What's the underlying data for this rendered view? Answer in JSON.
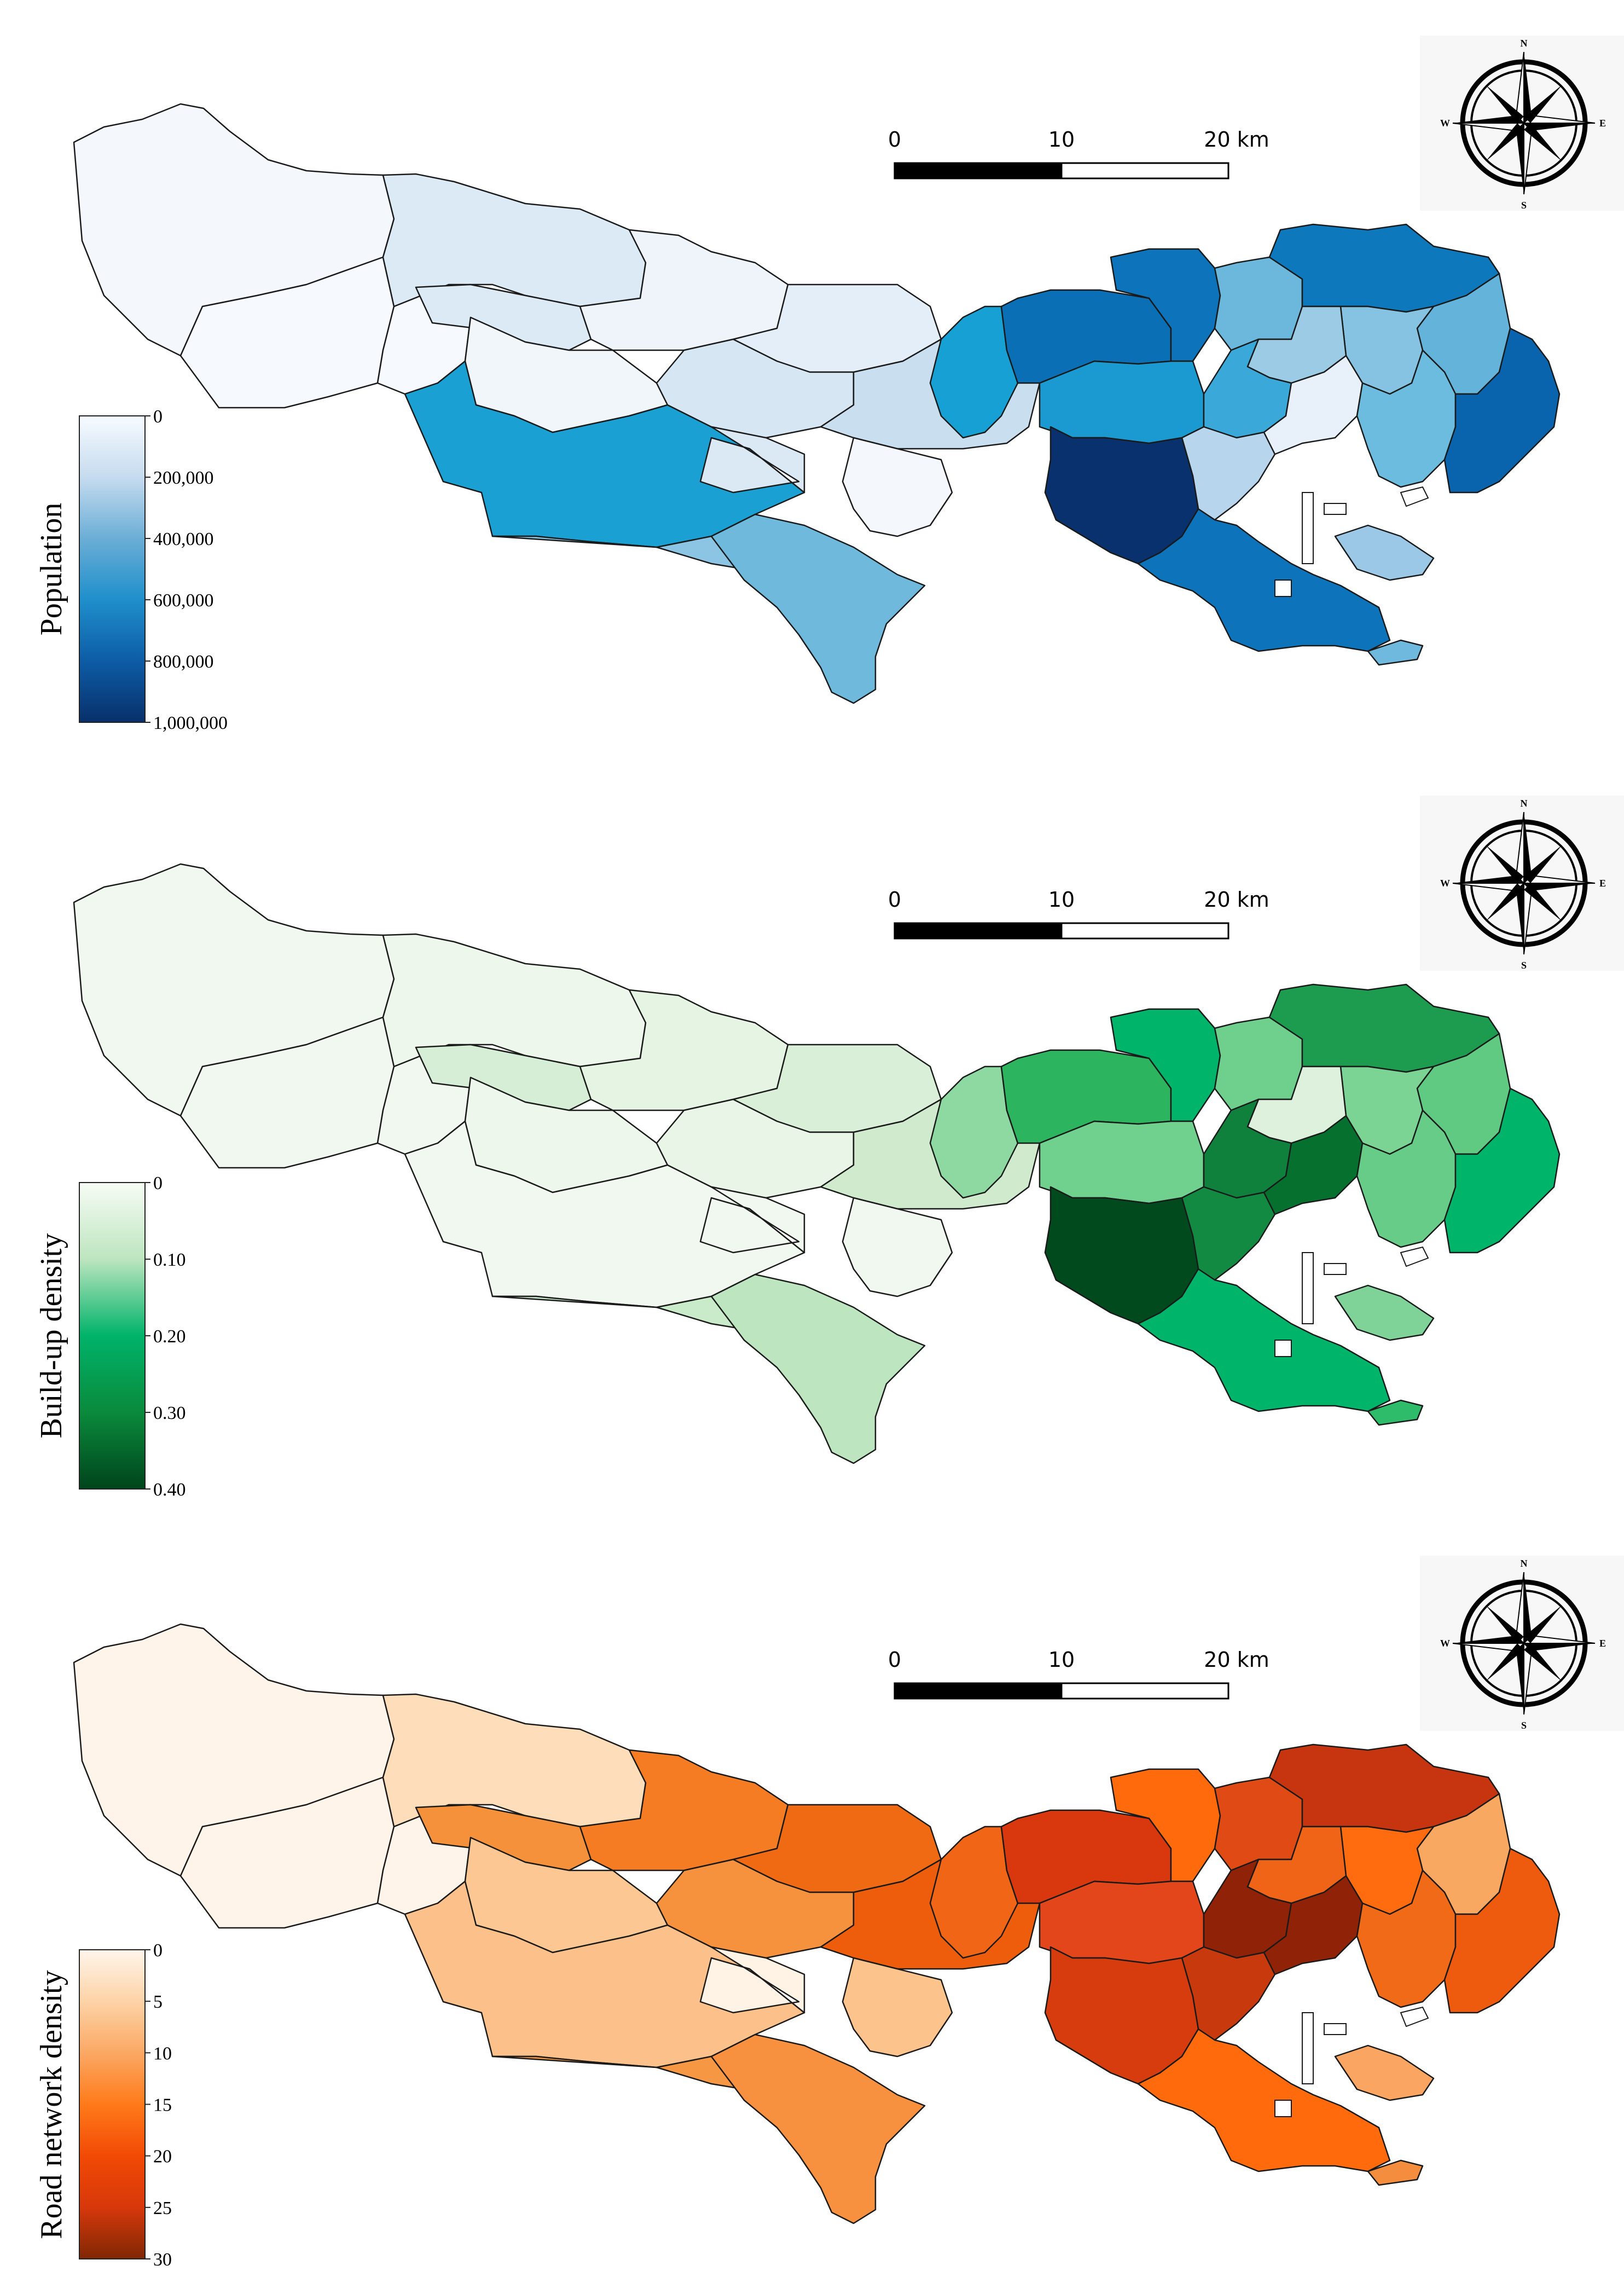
{
  "maps": [
    {
      "legend": {
        "title": "Population",
        "ticks": [
          "0",
          "200,000",
          "400,000",
          "600,000",
          "800,000",
          "1,000,000"
        ],
        "stops": [
          "#f7fbff",
          "#c6dbef",
          "#6baed6",
          "#1f8fcb",
          "#0d5ca5",
          "#08306b"
        ]
      },
      "scale": {
        "labels": [
          "0",
          "10",
          "20 km"
        ]
      },
      "compass": {
        "n": "N",
        "s": "S",
        "e": "E",
        "w": "W"
      },
      "regions": {
        "west1": "#f4f8fd",
        "west2": "#f6f9fd",
        "west3": "#f6f9fd",
        "mid_north": "#dceaf6",
        "mid_n2": "#dceaf6",
        "mid_center": "#f1f6fb",
        "southwest": "#1aa0d2",
        "south_tail": "#6fb9dd",
        "south_strip": "#8cc5e3",
        "c1": "#eef4fa",
        "c2": "#e3eef8",
        "c3": "#d6e6f3",
        "c4": "#c9dff0",
        "c5": "#dbe9f5",
        "c6": "#f4f8fc",
        "e1": "#1a9ad0",
        "e2": "#0b6fb6",
        "e3": "#0e78bd",
        "e4": "#16a0d3",
        "e5": "#0d74bb",
        "e6": "#3aa9d9",
        "e7": "#6cb8dd",
        "e8": "#9ccbe6",
        "e9": "#86c2e2",
        "e10": "#63b3db",
        "e11": "#08316e",
        "e12": "#0a63ad",
        "e13": "#b7d6ee",
        "e14": "#e8f1fa",
        "e15": "#6cbce0",
        "bay1": "#9ac8e6",
        "bay2": "#6fb9de"
      }
    },
    {
      "legend": {
        "title": "Build-up density",
        "ticks": [
          "0",
          "0.10",
          "0.20",
          "0.30",
          "0.40"
        ],
        "stops": [
          "#f7fcf5",
          "#bde5bf",
          "#00b36a",
          "#0a8a3c",
          "#00441b"
        ]
      },
      "scale": {
        "labels": [
          "0",
          "10",
          "20 km"
        ]
      },
      "compass": {
        "n": "N",
        "s": "S",
        "e": "E",
        "w": "W"
      },
      "regions": {
        "west1": "#f1f8ef",
        "west2": "#f1f8ef",
        "west3": "#f1f8ef",
        "mid_north": "#eef7ec",
        "mid_n2": "#d6eed6",
        "mid_center": "#eef7ec",
        "southwest": "#f1f8ef",
        "south_tail": "#bde5bf",
        "south_strip": "#c9ebc9",
        "c1": "#e6f4e4",
        "c2": "#d9efd8",
        "c3": "#e9f5e7",
        "c4": "#cfeacd",
        "c5": "#f1f8ef",
        "c6": "#f1f8ef",
        "e1": "#6fd18d",
        "e2": "#2db45e",
        "e3": "#1d9c4f",
        "e4": "#8ed8a2",
        "e5": "#00b46a",
        "e6": "#10803d",
        "e7": "#6fcf8c",
        "e8": "#ddf1dc",
        "e9": "#7bd494",
        "e10": "#60c982",
        "e11": "#004a1d",
        "e12": "#00b46a",
        "e13": "#138a41",
        "e14": "#06702e",
        "e15": "#67cc88",
        "bay1": "#7fd298",
        "bay2": "#2ebc6a"
      }
    },
    {
      "legend": {
        "title": "Road network density",
        "ticks": [
          "0",
          "5",
          "10",
          "15",
          "20",
          "25",
          "30"
        ],
        "stops": [
          "#fff5eb",
          "#fdd3a7",
          "#fba864",
          "#ff7a1a",
          "#f24a05",
          "#d7380b",
          "#7f2704"
        ]
      },
      "scale": {
        "labels": [
          "0",
          "10",
          "20 km"
        ]
      },
      "compass": {
        "n": "N",
        "s": "S",
        "e": "E",
        "w": "W"
      },
      "regions": {
        "west1": "#fff4ea",
        "west2": "#fff4ea",
        "west3": "#fff4ea",
        "mid_north": "#fdddba",
        "mid_n2": "#f5913a",
        "mid_center": "#fcc792",
        "southwest": "#fcc08a",
        "south_tail": "#f79140",
        "south_strip": "#f69744",
        "c1": "#f57c22",
        "c2": "#ef6a13",
        "c3": "#f6923e",
        "c4": "#ee5d0c",
        "c5": "#fff3e6",
        "c6": "#fcc38c",
        "e1": "#e4461c",
        "e2": "#d9380e",
        "e3": "#c73510",
        "e4": "#f06516",
        "e5": "#ff6a0d",
        "e6": "#8f2207",
        "e7": "#e04a15",
        "e8": "#f06418",
        "e9": "#ff6b0f",
        "e10": "#f9a862",
        "e11": "#d63c0d",
        "e12": "#ef5b0e",
        "e13": "#c83a0d",
        "e14": "#8f2207",
        "e15": "#f06a17",
        "bay1": "#fba563",
        "bay2": "#f48d3e"
      }
    }
  ]
}
